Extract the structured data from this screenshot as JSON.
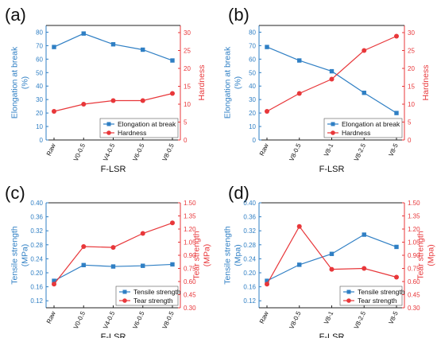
{
  "colors": {
    "blue": "#2f7fc4",
    "red": "#e8373a",
    "axis": "#222222"
  },
  "chart_data": [
    {
      "id": "a",
      "panel_label": "(a)",
      "type": "line",
      "categories": [
        "Raw",
        "V0-0.5",
        "V4-0.5",
        "V6-0.5",
        "V8-0.5"
      ],
      "xlabel": "F-LSR",
      "left_axis": {
        "label": [
          "Elongation at break",
          "(%)"
        ],
        "ylim": [
          0,
          85
        ],
        "ticks": [
          0,
          10,
          20,
          30,
          40,
          50,
          60,
          70,
          80
        ]
      },
      "right_axis": {
        "label": [
          "Hardness"
        ],
        "ylim": [
          0,
          32
        ],
        "ticks": [
          0,
          5,
          10,
          15,
          20,
          25,
          30
        ]
      },
      "series": [
        {
          "name": "Elongation at break",
          "axis": "left",
          "color": "#2f7fc4",
          "marker": "square",
          "values": [
            69,
            79,
            71,
            67,
            59
          ]
        },
        {
          "name": "Hardness",
          "axis": "right",
          "color": "#e8373a",
          "marker": "circle",
          "values": [
            8,
            10,
            11,
            11,
            13
          ]
        }
      ],
      "legend": "bottom-right"
    },
    {
      "id": "b",
      "panel_label": "(b)",
      "type": "line",
      "categories": [
        "Raw",
        "V8-0.5",
        "V8-1",
        "V8-2.5",
        "V8-5"
      ],
      "xlabel": "F-LSR",
      "left_axis": {
        "label": [
          "Elongation at break",
          "(%)"
        ],
        "ylim": [
          0,
          85
        ],
        "ticks": [
          0,
          10,
          20,
          30,
          40,
          50,
          60,
          70,
          80
        ]
      },
      "right_axis": {
        "label": [
          "Hardness"
        ],
        "ylim": [
          0,
          32
        ],
        "ticks": [
          0,
          5,
          10,
          15,
          20,
          25,
          30
        ]
      },
      "series": [
        {
          "name": "Elongation at break",
          "axis": "left",
          "color": "#2f7fc4",
          "marker": "square",
          "values": [
            69,
            59,
            51,
            35,
            20
          ]
        },
        {
          "name": "Hardness",
          "axis": "right",
          "color": "#e8373a",
          "marker": "circle",
          "values": [
            8,
            13,
            17,
            25,
            29
          ]
        }
      ],
      "legend": "bottom-right"
    },
    {
      "id": "c",
      "panel_label": "(c)",
      "type": "line",
      "categories": [
        "Raw",
        "V0-0.5",
        "V4-0.5",
        "V6-0.5",
        "V8-0.5"
      ],
      "xlabel": "F-LSR",
      "left_axis": {
        "label": [
          "Tensile strength",
          "(MPa)"
        ],
        "ylim": [
          0.1,
          0.4
        ],
        "ticks": [
          "0.12",
          "0.16",
          "0.20",
          "0.24",
          "0.28",
          "0.32",
          "0.36",
          "0.40"
        ]
      },
      "right_axis": {
        "label": [
          "Tear strength",
          "(MPa)"
        ],
        "ylim": [
          0.3,
          1.5
        ],
        "ticks": [
          "0.30",
          "0.45",
          "0.60",
          "0.75",
          "0.90",
          "1.05",
          "1.20",
          "1.35",
          "1.50"
        ]
      },
      "series": [
        {
          "name": "Tensile strength",
          "axis": "left",
          "color": "#2f7fc4",
          "marker": "square",
          "values": [
            0.177,
            0.222,
            0.218,
            0.22,
            0.224
          ]
        },
        {
          "name": "Tear strength",
          "axis": "right",
          "color": "#e8373a",
          "marker": "circle",
          "values": [
            0.57,
            1.0,
            0.99,
            1.15,
            1.27
          ]
        }
      ],
      "legend": "bottom-right"
    },
    {
      "id": "d",
      "panel_label": "(d)",
      "type": "line",
      "categories": [
        "Raw",
        "V8-0.5",
        "V8-1",
        "V8-2.5",
        "V8-5"
      ],
      "xlabel": "F-LSR",
      "left_axis": {
        "label": [
          "Tensile strength",
          "(Mpa)"
        ],
        "ylim": [
          0.1,
          0.4
        ],
        "ticks": [
          "0.12",
          "0.16",
          "0.20",
          "0.24",
          "0.28",
          "0.32",
          "0.36",
          "0.40"
        ]
      },
      "right_axis": {
        "label": [
          "Tear strength",
          "(Mpa)"
        ],
        "ylim": [
          0.3,
          1.5
        ],
        "ticks": [
          "0.30",
          "0.45",
          "0.60",
          "0.75",
          "0.90",
          "1.05",
          "1.20",
          "1.35",
          "1.50"
        ]
      },
      "series": [
        {
          "name": "Tensile strength",
          "axis": "left",
          "color": "#2f7fc4",
          "marker": "square",
          "values": [
            0.177,
            0.223,
            0.254,
            0.309,
            0.274
          ]
        },
        {
          "name": "Tear strength",
          "axis": "right",
          "color": "#e8373a",
          "marker": "circle",
          "values": [
            0.57,
            1.23,
            0.74,
            0.75,
            0.65
          ]
        }
      ],
      "legend": "bottom-right"
    }
  ]
}
